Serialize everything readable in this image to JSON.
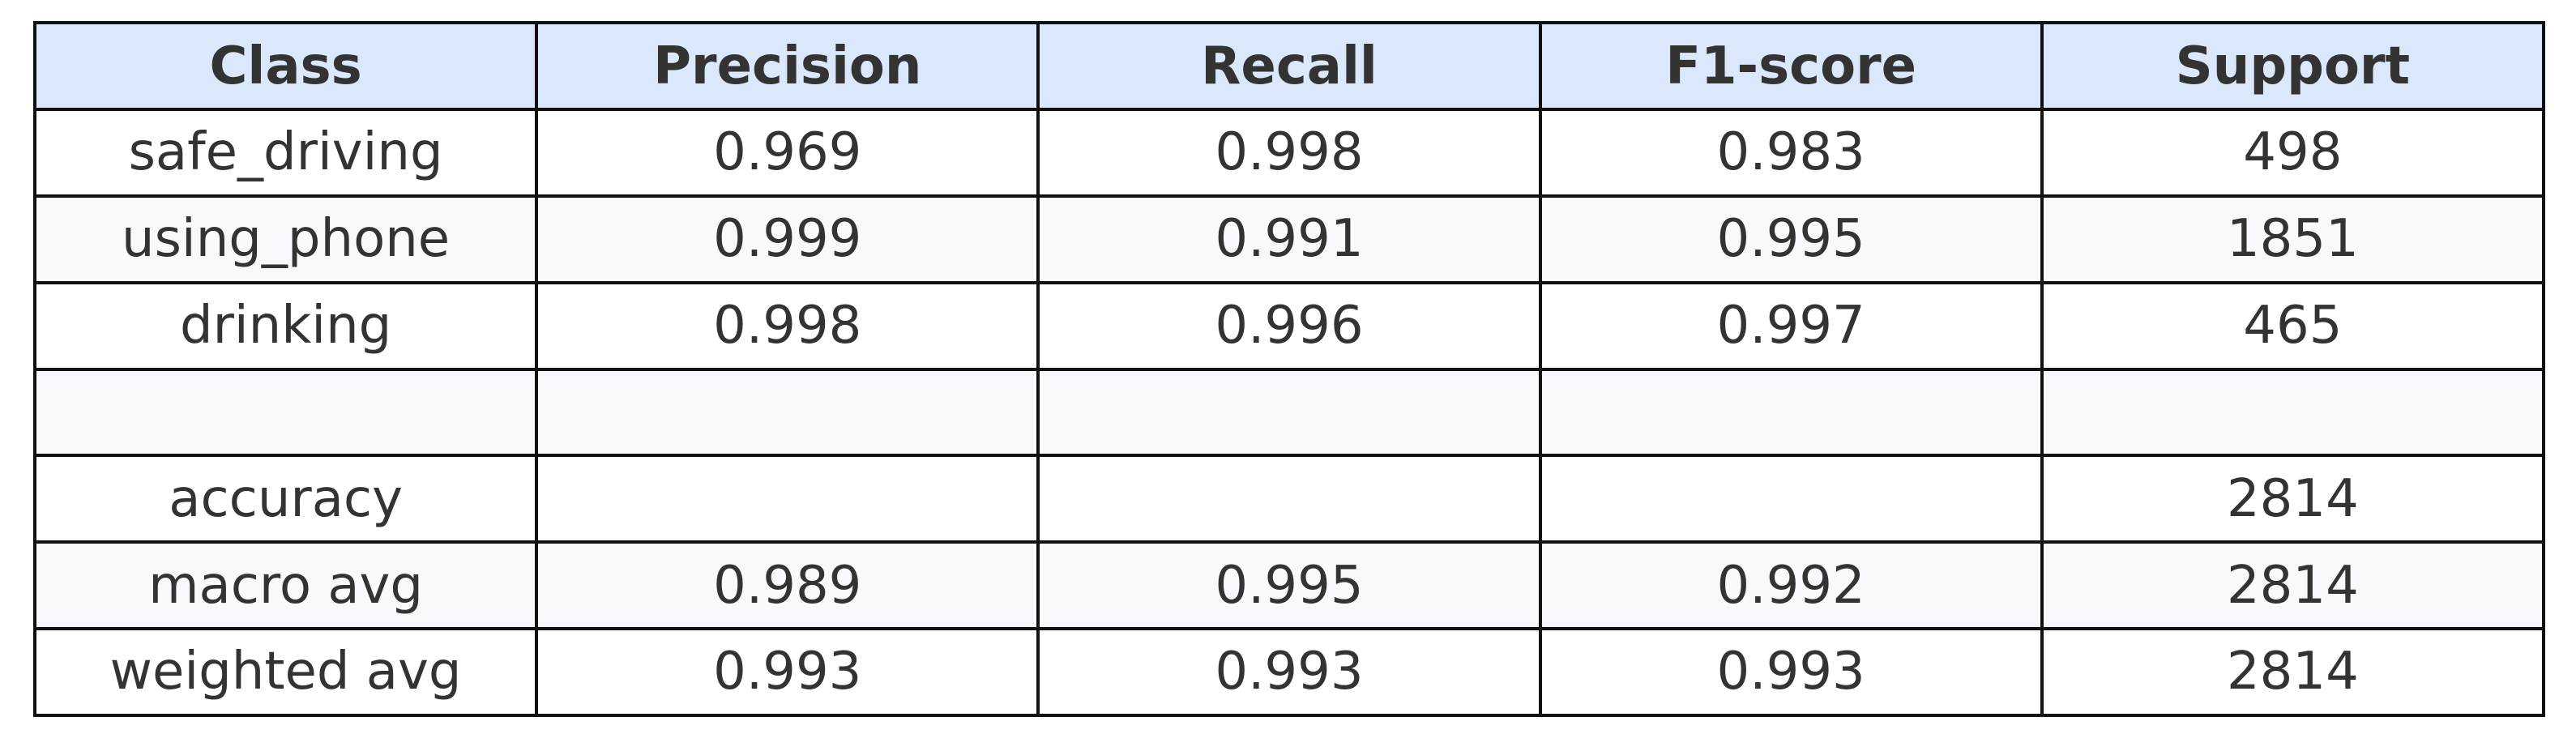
{
  "chart_data": {
    "type": "table",
    "columns": [
      "Class",
      "Precision",
      "Recall",
      "F1-score",
      "Support"
    ],
    "rows": [
      [
        "safe_driving",
        "0.969",
        "0.998",
        "0.983",
        "498"
      ],
      [
        "using_phone",
        "0.999",
        "0.991",
        "0.995",
        "1851"
      ],
      [
        "drinking",
        "0.998",
        "0.996",
        "0.997",
        "465"
      ],
      [
        "",
        "",
        "",
        "",
        ""
      ],
      [
        "accuracy",
        "",
        "",
        "",
        "2814"
      ],
      [
        "macro avg",
        "0.989",
        "0.995",
        "0.992",
        "2814"
      ],
      [
        "weighted avg",
        "0.993",
        "0.993",
        "0.993",
        "2814"
      ]
    ]
  },
  "colors": {
    "header_background": "#dbe8fb",
    "row_background": "#ffffff",
    "alternate_row_background": "#f7f9fc",
    "text": "#333333",
    "border": "#111111"
  }
}
